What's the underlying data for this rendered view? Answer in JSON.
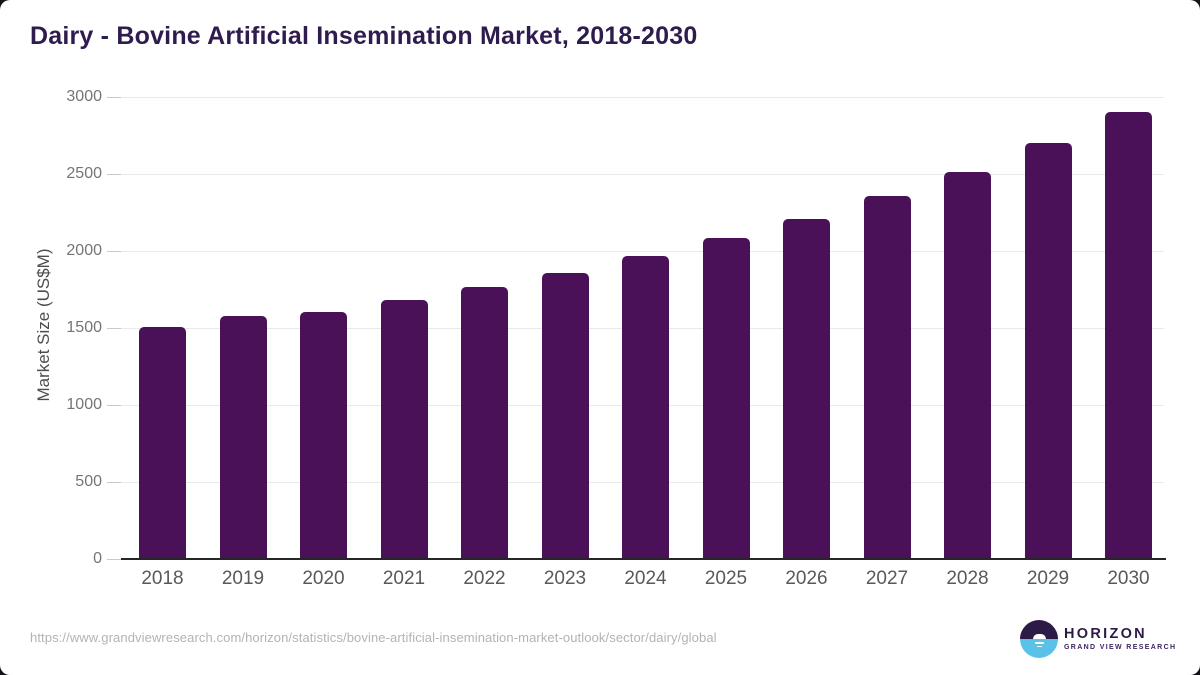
{
  "page": {
    "title": "Dairy - Bovine Artificial Insemination Market, 2018-2030",
    "source_url": "https://www.grandviewresearch.com/horizon/statistics/bovine-artificial-insemination-market-outlook/sector/dairy/global"
  },
  "logo": {
    "name": "HORIZON",
    "subtitle": "GRAND VIEW RESEARCH"
  },
  "colors": {
    "bar": "#4a1158",
    "title": "#2f1c4e",
    "grid": "#e9e9e9",
    "axis": "#262626",
    "y_tick_label": "#757575",
    "x_tick_label": "#595959",
    "url_text": "#b3b3b3",
    "logo_purple": "#2e1a47",
    "logo_blue": "#5bc2e7",
    "page_background": "#141218"
  },
  "chart_data": {
    "type": "bar",
    "title": "Dairy - Bovine Artificial Insemination Market, 2018-2030",
    "categories": [
      "2018",
      "2019",
      "2020",
      "2021",
      "2022",
      "2023",
      "2024",
      "2025",
      "2026",
      "2027",
      "2028",
      "2029",
      "2030"
    ],
    "values": [
      1505,
      1580,
      1605,
      1685,
      1765,
      1860,
      1965,
      2085,
      2210,
      2355,
      2515,
      2700,
      2905
    ],
    "xlabel": "",
    "ylabel": "Market Size (US$M)",
    "ylim": [
      0,
      3000
    ],
    "ytick_step": 500,
    "yticks": [
      0,
      500,
      1000,
      1500,
      2000,
      2500,
      3000
    ],
    "grid": true,
    "legend": false
  }
}
